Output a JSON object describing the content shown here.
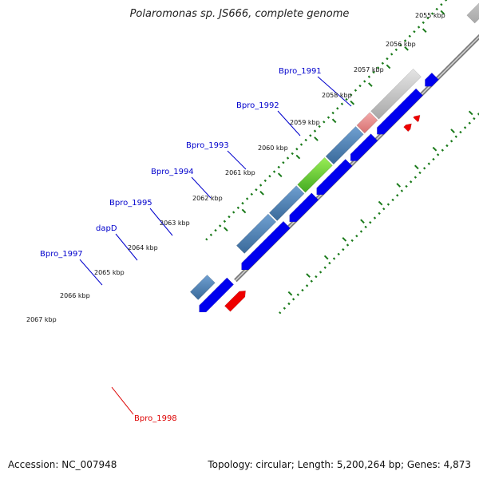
{
  "title": "Polaromonas sp. JS666, complete genome",
  "footer": {
    "accession": "Accession: NC_007948",
    "info": "Topology: circular; Length: 5,200,264 bp; Genes: 4,873"
  },
  "scale_labels": [
    "2055 kbp",
    "2056 kbp",
    "2057 kbp",
    "2058 kbp",
    "2059 kbp",
    "2060 kbp",
    "2061 kbp",
    "2062 kbp",
    "2063 kbp",
    "2064 kbp",
    "2065 kbp",
    "2066 kbp",
    "2067 kbp"
  ],
  "gene_labels": [
    {
      "text": "Bpro_1991",
      "color": "#0000cc"
    },
    {
      "text": "Bpro_1992",
      "color": "#0000cc"
    },
    {
      "text": "Bpro_1993",
      "color": "#0000cc"
    },
    {
      "text": "Bpro_1994",
      "color": "#0000cc"
    },
    {
      "text": "Bpro_1995",
      "color": "#0000cc"
    },
    {
      "text": "dapD",
      "color": "#0000cc"
    },
    {
      "text": "Bpro_1997",
      "color": "#0000cc"
    },
    {
      "text": "Bpro_1998",
      "color": "#dd0000"
    }
  ],
  "colors": {
    "forward_cds": "#0000ee",
    "reverse_cds": "#ee0000",
    "steelblue": "#4a7fb5",
    "gray": "#c0c0c0",
    "pink": "#e88b8b",
    "green": "#66cc33",
    "tick": "#1a7a1a",
    "backbone": "#808080"
  }
}
